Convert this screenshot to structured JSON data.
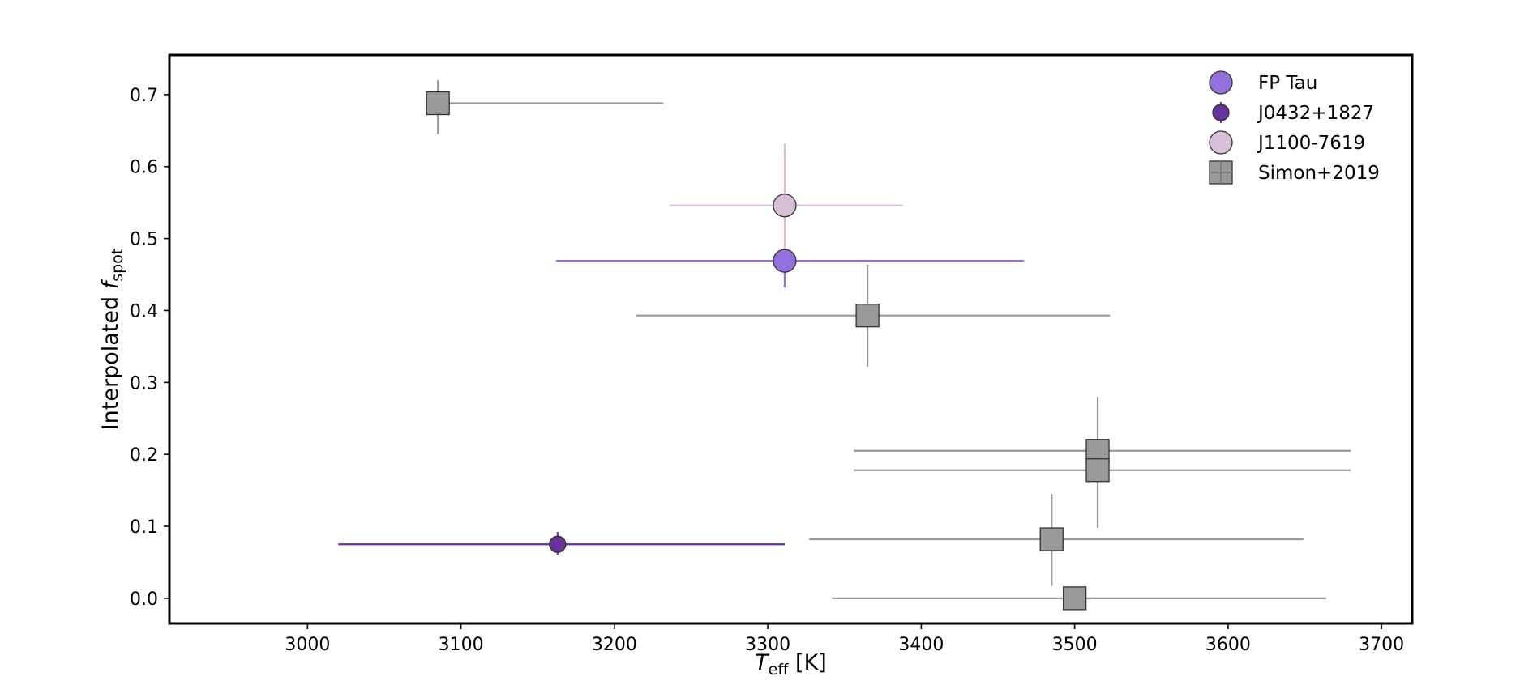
{
  "chart_data": {
    "type": "scatter",
    "xlabel_symbol": "T",
    "xlabel_sub": "eff",
    "xlabel_unit": "[K]",
    "ylabel_text": "Interpolated",
    "ylabel_symbol": "f",
    "ylabel_sub": "spot",
    "xlim": [
      2910,
      3720
    ],
    "ylim": [
      -0.035,
      0.755
    ],
    "xticks": [
      3000,
      3100,
      3200,
      3300,
      3400,
      3500,
      3600,
      3700
    ],
    "yticks": [
      0.0,
      0.1,
      0.2,
      0.3,
      0.4,
      0.5,
      0.6,
      0.7
    ],
    "ytick_labels": [
      "0.0",
      "0.1",
      "0.2",
      "0.3",
      "0.4",
      "0.5",
      "0.6",
      "0.7"
    ],
    "legend_position": "top-right",
    "grid": false,
    "series": [
      {
        "name": "Simon+2019",
        "marker": "square",
        "color": "#999999",
        "errcolor": "#999999",
        "points": [
          {
            "x": 3085,
            "y": 0.688,
            "xerr": [
              3085,
              3232
            ],
            "yerr": [
              0.645,
              0.72
            ]
          },
          {
            "x": 3365,
            "y": 0.393,
            "xerr": [
              3214,
              3523
            ],
            "yerr": [
              0.322,
              0.464
            ]
          },
          {
            "x": 3515,
            "y": 0.205,
            "xerr": [
              3356,
              3680
            ],
            "yerr": [
              0.188,
              0.28
            ]
          },
          {
            "x": 3515,
            "y": 0.178,
            "xerr": [
              3356,
              3680
            ],
            "yerr": [
              0.098,
              0.188
            ]
          },
          {
            "x": 3485,
            "y": 0.082,
            "xerr": [
              3327,
              3649
            ],
            "yerr": [
              0.017,
              0.145
            ]
          },
          {
            "x": 3500,
            "y": 0.0,
            "xerr": [
              3342,
              3664
            ],
            "yerr": [
              0.0,
              0.0
            ]
          }
        ]
      },
      {
        "name": "J1100-7619",
        "marker": "circle",
        "size": "large",
        "color": "#d8bfd8",
        "errcolor": "#d8bfd8",
        "points": [
          {
            "x": 3311,
            "y": 0.546,
            "xerr": [
              3236,
              3388
            ],
            "yerr": [
              0.462,
              0.632
            ]
          }
        ]
      },
      {
        "name": "FP Tau",
        "marker": "circle",
        "size": "large",
        "color": "#9370db",
        "errcolor": "#9370db",
        "points": [
          {
            "x": 3311,
            "y": 0.469,
            "xerr": [
              3162,
              3467
            ],
            "yerr": [
              0.432,
              0.469
            ]
          }
        ]
      },
      {
        "name": "J0432+1827",
        "marker": "circle",
        "size": "small",
        "color": "#663399",
        "errcolor": "#663399",
        "points": [
          {
            "x": 3163,
            "y": 0.075,
            "xerr": [
              3020,
              3311
            ],
            "yerr": [
              0.06,
              0.092
            ]
          }
        ]
      }
    ],
    "legend": [
      {
        "label": "FP Tau",
        "series": "FP Tau"
      },
      {
        "label": "J0432+1827",
        "series": "J0432+1827"
      },
      {
        "label": "J1100-7619",
        "series": "J1100-7619"
      },
      {
        "label": "Simon+2019",
        "series": "Simon+2019"
      }
    ]
  }
}
